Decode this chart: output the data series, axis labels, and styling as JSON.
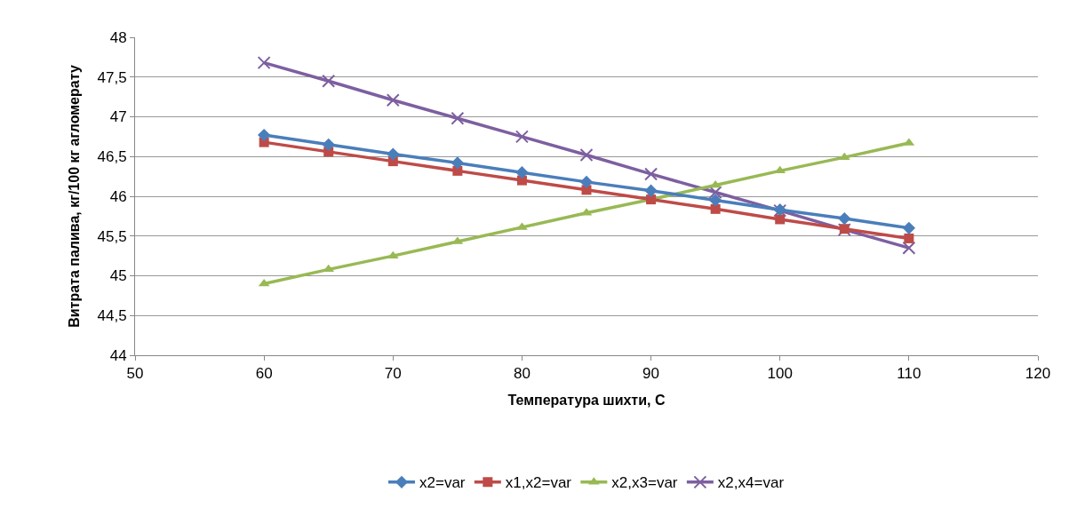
{
  "chart_data": {
    "type": "line",
    "xlabel": "Температура шихти, С",
    "ylabel": "Витрата палива, кг/100 кг агломерату",
    "x": [
      60,
      65,
      70,
      75,
      80,
      85,
      90,
      95,
      100,
      105,
      110
    ],
    "series": [
      {
        "name": "x2=var",
        "color": "#4a7ebb",
        "marker": "diamond",
        "values": [
          46.77,
          46.65,
          46.53,
          46.42,
          46.3,
          46.18,
          46.07,
          45.95,
          45.83,
          45.72,
          45.6
        ]
      },
      {
        "name": "x1,x2=var",
        "color": "#be4b48",
        "marker": "square",
        "values": [
          46.68,
          46.56,
          46.44,
          46.32,
          46.2,
          46.08,
          45.96,
          45.84,
          45.71,
          45.59,
          45.47
        ]
      },
      {
        "name": "x2,x3=var",
        "color": "#98b954",
        "marker": "triangle",
        "values": [
          44.9,
          45.08,
          45.25,
          45.43,
          45.61,
          45.79,
          45.96,
          46.14,
          46.32,
          46.49,
          46.67
        ]
      },
      {
        "name": "x2,x4=var",
        "color": "#7d5fa0",
        "marker": "cross",
        "values": [
          47.68,
          47.45,
          47.21,
          46.98,
          46.75,
          46.52,
          46.28,
          46.05,
          45.82,
          45.58,
          45.35
        ]
      }
    ],
    "xlim": [
      50,
      120
    ],
    "xticks": [
      50,
      60,
      70,
      80,
      90,
      100,
      110,
      120
    ],
    "ylim": [
      44,
      48
    ],
    "yticks": [
      44,
      {
        "value": 44.5,
        "label": "44,5"
      },
      45,
      {
        "value": 45.5,
        "label": "45,5"
      },
      46,
      {
        "value": 46.5,
        "label": "46,5"
      },
      47,
      {
        "value": 47.5,
        "label": "47,5"
      },
      48
    ],
    "grid": "y",
    "legend": "bottom",
    "line_style": "solid"
  }
}
